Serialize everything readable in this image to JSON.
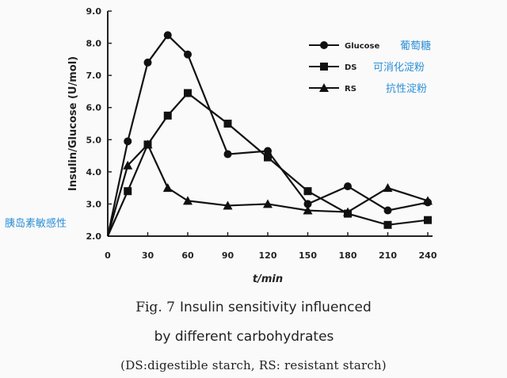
{
  "chart_data": {
    "type": "line",
    "xlabel": "t/min",
    "ylabel": "Insulin/Glucose (U/mol)",
    "x_ticks": [
      "0",
      "30",
      "60",
      "90",
      "120",
      "150",
      "180",
      "210",
      "240"
    ],
    "y_ticks": [
      "2.0",
      "3.0",
      "4.0",
      "5.0",
      "6.0",
      "7.0",
      "8.0",
      "9.0"
    ],
    "xlim": [
      0,
      240
    ],
    "ylim": [
      2.0,
      9.0
    ],
    "grid": false,
    "legend_position": "top-right",
    "series": [
      {
        "name": "Glucose",
        "name_cn": "葡萄糖",
        "marker": "circle",
        "x": [
          0,
          15,
          30,
          45,
          60,
          90,
          120,
          150,
          180,
          210,
          240
        ],
        "y": [
          2.0,
          4.95,
          7.4,
          8.25,
          7.65,
          4.55,
          4.65,
          3.0,
          3.55,
          2.8,
          3.05
        ]
      },
      {
        "name": "DS",
        "name_cn": "可消化淀粉",
        "marker": "square",
        "x": [
          0,
          15,
          30,
          45,
          60,
          90,
          120,
          150,
          180,
          210,
          240
        ],
        "y": [
          2.0,
          3.4,
          4.85,
          5.75,
          6.45,
          5.5,
          4.45,
          3.4,
          2.7,
          2.35,
          2.5
        ]
      },
      {
        "name": "RS",
        "name_cn": "抗性淀粉",
        "marker": "triangle",
        "x": [
          0,
          15,
          30,
          45,
          60,
          90,
          120,
          150,
          180,
          210,
          240
        ],
        "y": [
          2.0,
          4.2,
          4.85,
          3.5,
          3.1,
          2.95,
          3.0,
          2.8,
          2.75,
          3.5,
          3.1
        ]
      }
    ],
    "annotation": "胰岛素敏感性",
    "caption": {
      "fig_label": "Fig. 7",
      "line1": "Insulin sensitivity influenced",
      "line2": "by different carbohydrates",
      "line3": "(DS:digestible starch, RS: resistant starch)"
    }
  }
}
